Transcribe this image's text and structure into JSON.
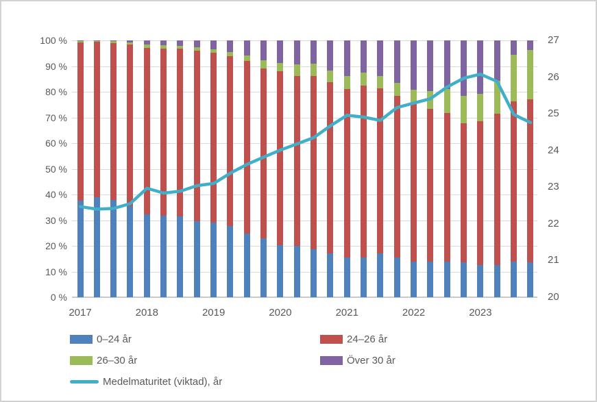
{
  "chart_data": {
    "type": "stacked-bar-line-combo",
    "bars_per_year": 4,
    "x_year_labels": [
      "2017",
      "2018",
      "2019",
      "2020",
      "2021",
      "2022",
      "2023"
    ],
    "stack_series": [
      {
        "name": "0–24 år",
        "color": "#4F81BD",
        "values": [
          37.6,
          38.9,
          37.8,
          35.6,
          32.2,
          31.8,
          31.5,
          29.6,
          29.1,
          27.8,
          24.9,
          22.9,
          20.3,
          20.0,
          18.6,
          17.2,
          15.6,
          15.6,
          17.2,
          15.4,
          14.0,
          14.0,
          14.0,
          13.6,
          12.5,
          12.6,
          13.8,
          13.6
        ]
      },
      {
        "name": "24–26 år",
        "color": "#C0504D",
        "values": [
          61.5,
          60.5,
          61.1,
          62.8,
          65.0,
          65.1,
          65.2,
          66.4,
          66.0,
          66.0,
          67.1,
          66.3,
          67.7,
          66.1,
          67.6,
          66.6,
          65.6,
          66.8,
          64.1,
          63.1,
          61.1,
          59.3,
          57.7,
          54.1,
          56.1,
          59.0,
          62.4,
          63.5
        ]
      },
      {
        "name": "26–30 år",
        "color": "#9BBB59",
        "values": [
          0.6,
          0.3,
          0.8,
          0.8,
          1.1,
          1.2,
          1.2,
          1.3,
          1.5,
          1.7,
          2.2,
          3.2,
          3.3,
          4.6,
          4.7,
          4.6,
          5.0,
          5.2,
          4.9,
          5.1,
          5.8,
          7.0,
          9.4,
          10.7,
          10.5,
          12.6,
          18.2,
          19.1
        ]
      },
      {
        "name": "Över 30 år",
        "color": "#8064A2",
        "values": [
          0.3,
          0.3,
          0.3,
          0.8,
          1.7,
          1.9,
          2.1,
          2.7,
          3.4,
          4.5,
          5.8,
          7.6,
          8.7,
          9.3,
          9.1,
          11.6,
          13.8,
          12.4,
          13.8,
          16.4,
          19.1,
          19.7,
          18.9,
          21.6,
          20.9,
          15.8,
          5.6,
          3.8
        ]
      }
    ],
    "line_series": {
      "name": "Medelmaturitet (viktad), år",
      "color": "#42AFC9",
      "axis": "right",
      "values": [
        22.47,
        22.4,
        22.42,
        22.55,
        22.97,
        22.84,
        22.89,
        23.04,
        23.1,
        23.38,
        23.62,
        23.82,
        24.01,
        24.18,
        24.35,
        24.67,
        24.96,
        24.91,
        24.82,
        25.17,
        25.29,
        25.41,
        25.73,
        25.97,
        26.08,
        25.88,
        24.98,
        24.76
      ]
    },
    "left_axis": {
      "min": 0,
      "max": 100,
      "ticks": [
        "0 %",
        "10 %",
        "20 %",
        "30 %",
        "40 %",
        "50 %",
        "60 %",
        "70 %",
        "80 %",
        "90 %",
        "100 %"
      ]
    },
    "right_axis": {
      "min": 20,
      "max": 27,
      "ticks": [
        "20",
        "21",
        "22",
        "23",
        "24",
        "25",
        "26",
        "27"
      ]
    },
    "grid": "horizontal",
    "legend_position": "bottom"
  },
  "legend": [
    {
      "label": "0–24 år",
      "type": "rect",
      "color": "#4F81BD"
    },
    {
      "label": "24–26 år",
      "type": "rect",
      "color": "#C0504D"
    },
    {
      "label": "26–30 år",
      "type": "rect",
      "color": "#9BBB59"
    },
    {
      "label": "Över 30 år",
      "type": "rect",
      "color": "#8064A2"
    },
    {
      "label": "Medelmaturitet (viktad), år",
      "type": "line",
      "color": "#42AFC9"
    }
  ],
  "colors": {
    "gridline": "#d9d9d9",
    "axis_line": "#c9c9c9",
    "tick_text": "#595959",
    "background": "#ffffff"
  }
}
